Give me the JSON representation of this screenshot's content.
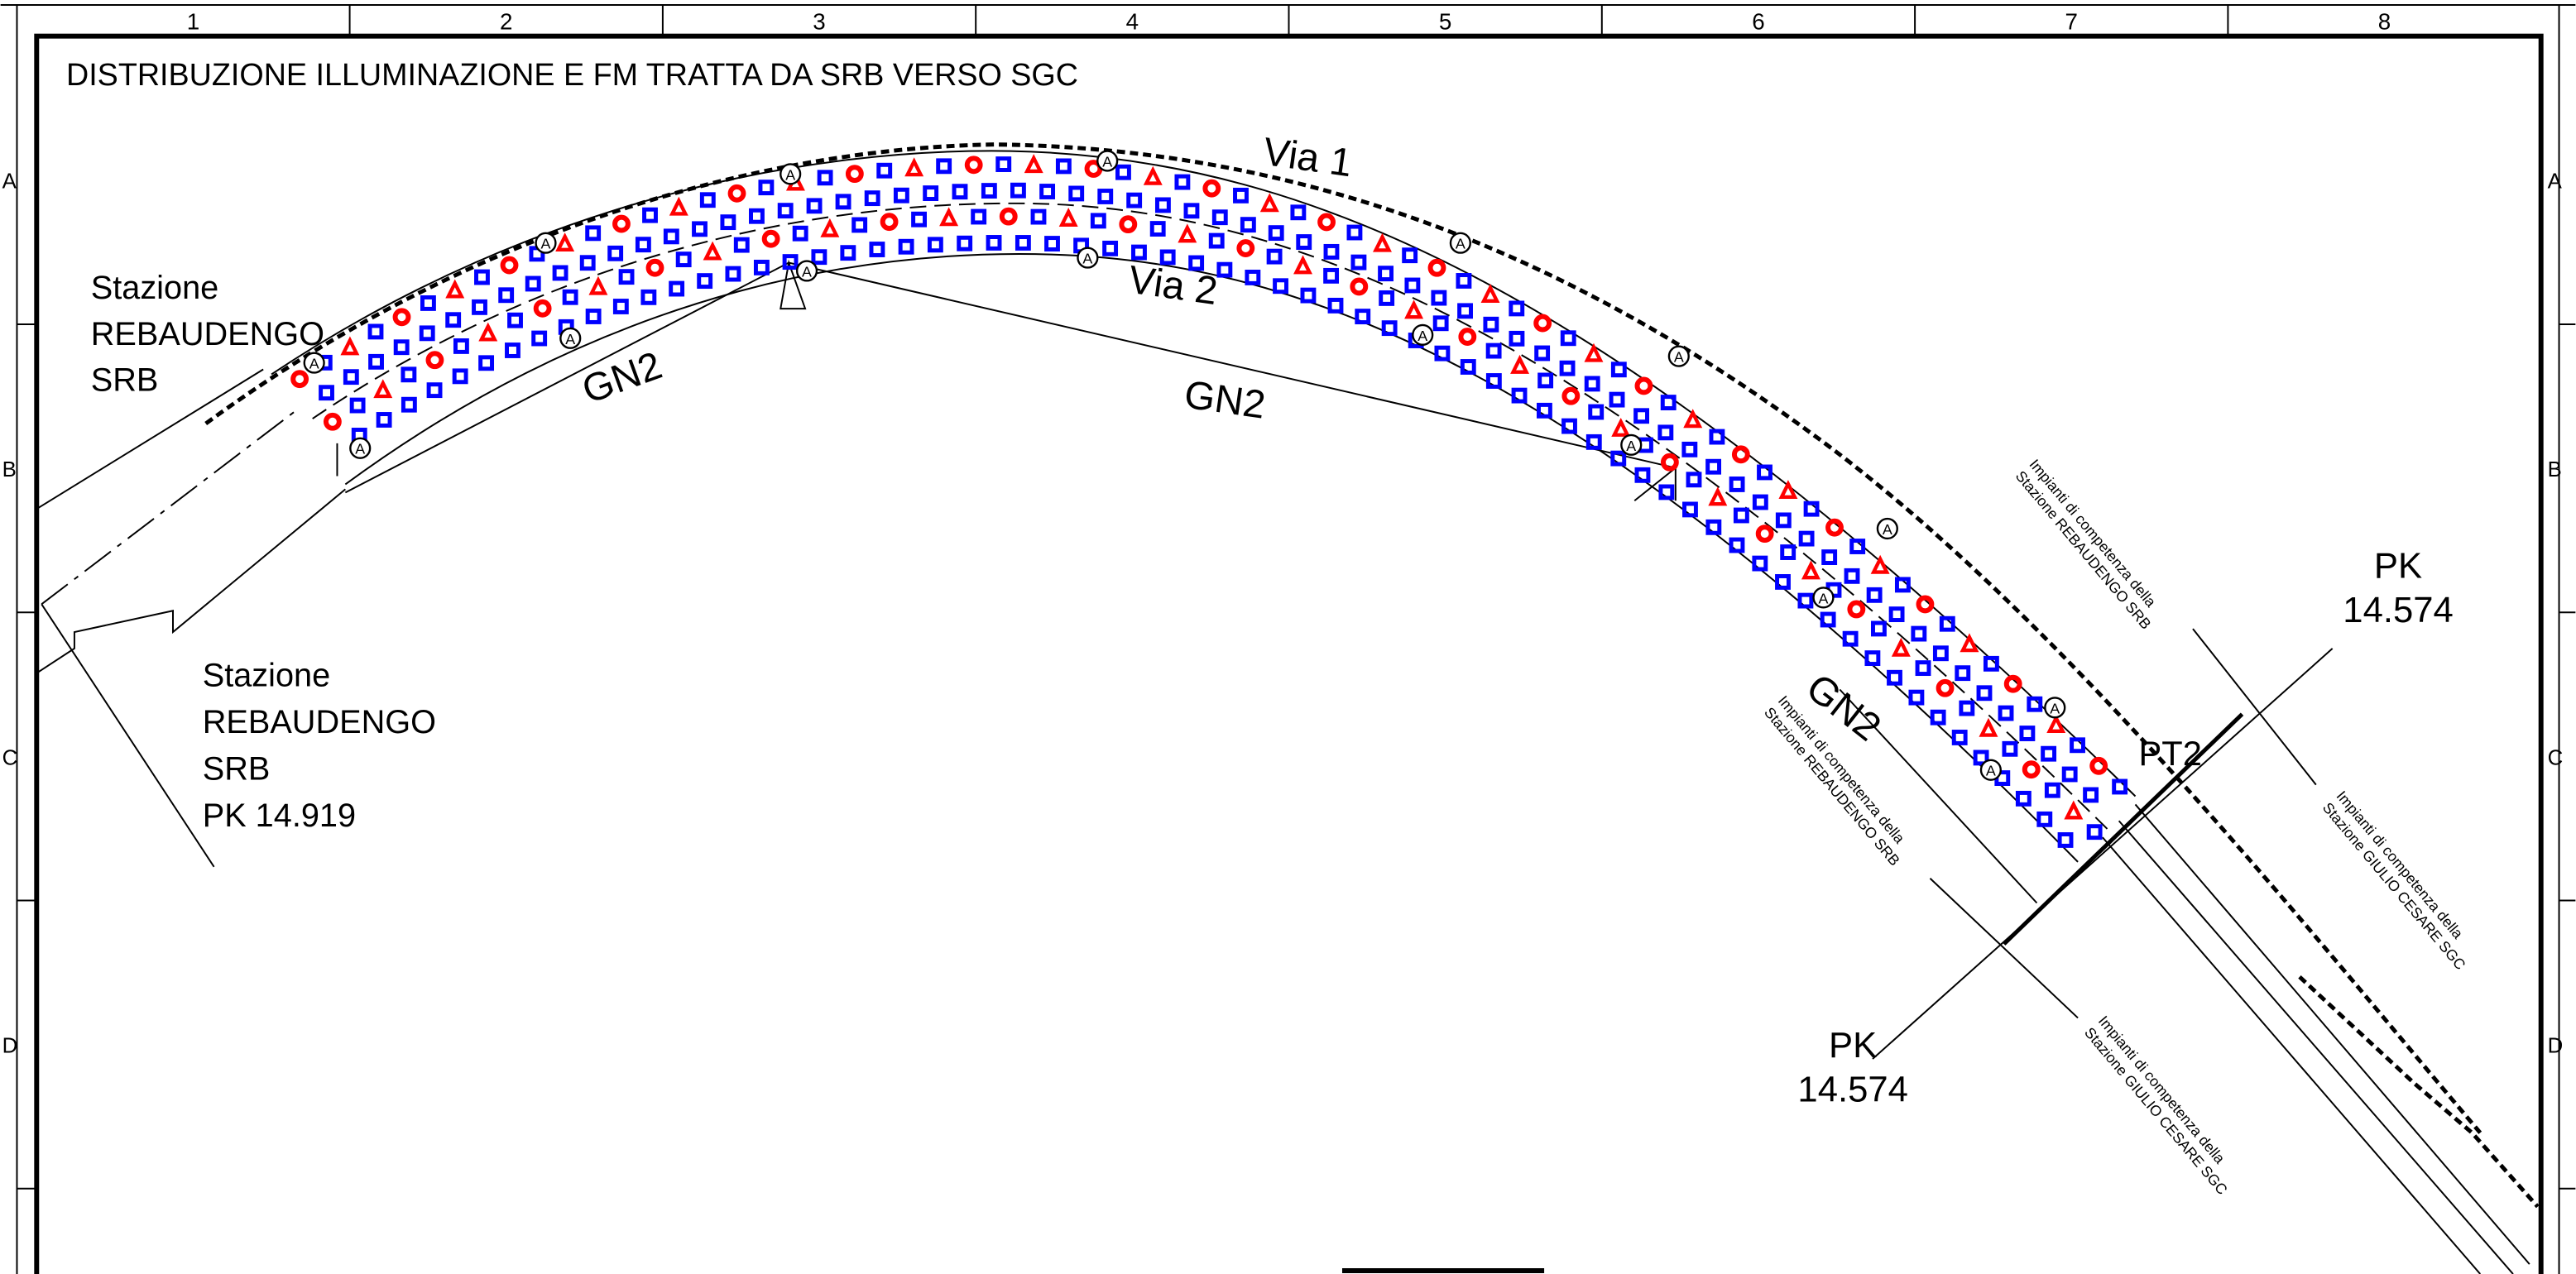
{
  "frame": {
    "columns": [
      "1",
      "2",
      "3",
      "4",
      "5",
      "6",
      "7",
      "8"
    ],
    "rows": [
      "A",
      "B",
      "C",
      "D"
    ]
  },
  "title": "DISTRIBUZIONE ILLUMINAZIONE E FM TRATTA DA SRB VERSO SGC",
  "labels": {
    "station_top": [
      "Stazione",
      "REBAUDENGO",
      "SRB"
    ],
    "station_bottom": [
      "Stazione",
      "REBAUDENGO",
      "SRB",
      "PK 14.919"
    ],
    "via1": "Via 1",
    "via2": "Via 2",
    "gn2": [
      "GN2",
      "GN2",
      "GN2"
    ],
    "pk_top": [
      "PK",
      "14.574"
    ],
    "pk_bottom": [
      "PK",
      "14.574"
    ],
    "pt2": "PT2",
    "impianti": [
      [
        "Impianti di competenza della",
        "Stazione REBAUDENGO SRB"
      ],
      [
        "Impianti di competenza della",
        "Stazione GIULIO CESARE  SGC"
      ],
      [
        "Impianti di competenza della",
        "Stazione REBAUDENGO SRB"
      ],
      [
        "Impianti di competenza della",
        "Stazione GIULIO CESARE  SGC"
      ]
    ]
  },
  "marker": "A"
}
